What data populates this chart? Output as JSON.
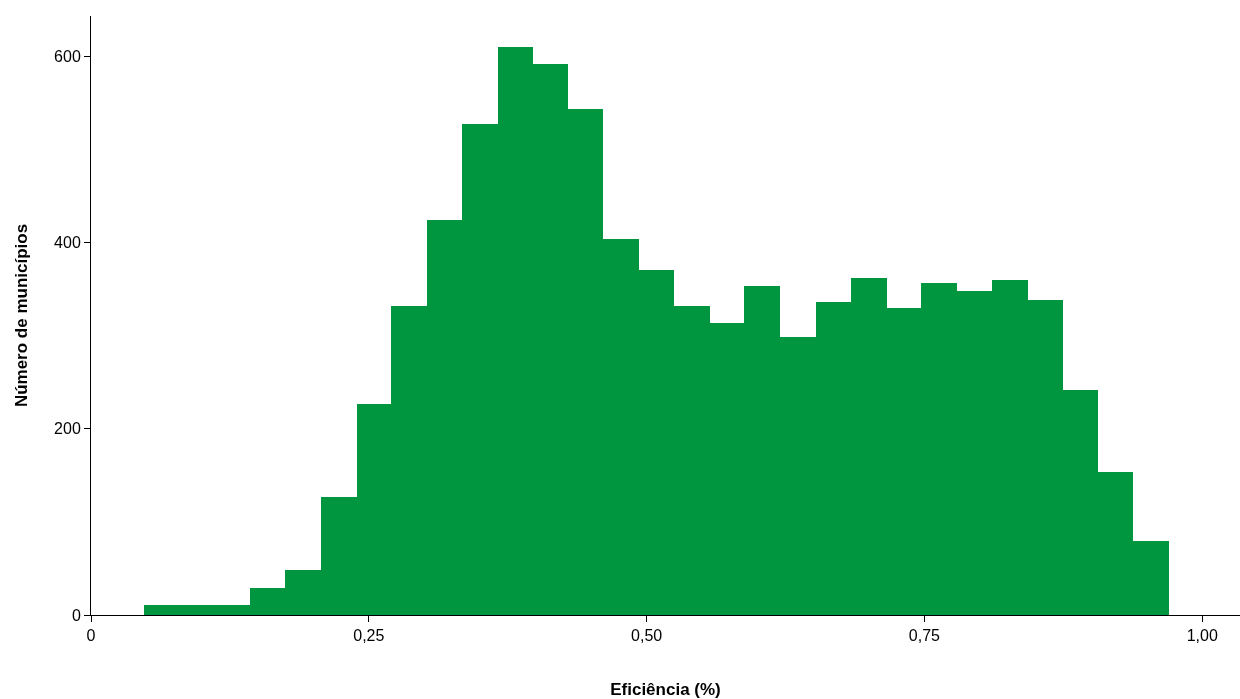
{
  "chart_data": {
    "type": "histogram",
    "xlabel": "Eficiência (%)",
    "ylabel": "Número de municípios",
    "color": "#009640",
    "bins": [
      0.048,
      0.08,
      0.111,
      0.143,
      0.175,
      0.207,
      0.239,
      0.27,
      0.302,
      0.334,
      0.366,
      0.398,
      0.429,
      0.461,
      0.493,
      0.525,
      0.557,
      0.588,
      0.62,
      0.652,
      0.684,
      0.716,
      0.747,
      0.779,
      0.811,
      0.843,
      0.875,
      0.906,
      0.938,
      0.97
    ],
    "values": [
      11,
      11,
      11,
      29,
      48,
      127,
      226,
      332,
      424,
      527,
      610,
      592,
      543,
      404,
      370,
      332,
      313,
      353,
      298,
      336,
      362,
      330,
      356,
      348,
      360,
      338,
      241,
      153,
      79
    ],
    "xlim": [
      0,
      1.034
    ],
    "ylim": [
      0,
      643
    ],
    "xticks": [
      0,
      {
        "value": 0.25,
        "label": "0,25"
      },
      {
        "value": 0.5,
        "label": "0,50"
      },
      {
        "value": 0.75,
        "label": "0,75"
      },
      {
        "value": 1,
        "label": "1,00"
      }
    ],
    "yticks": [
      0,
      200,
      400,
      600
    ],
    "grid": false
  }
}
